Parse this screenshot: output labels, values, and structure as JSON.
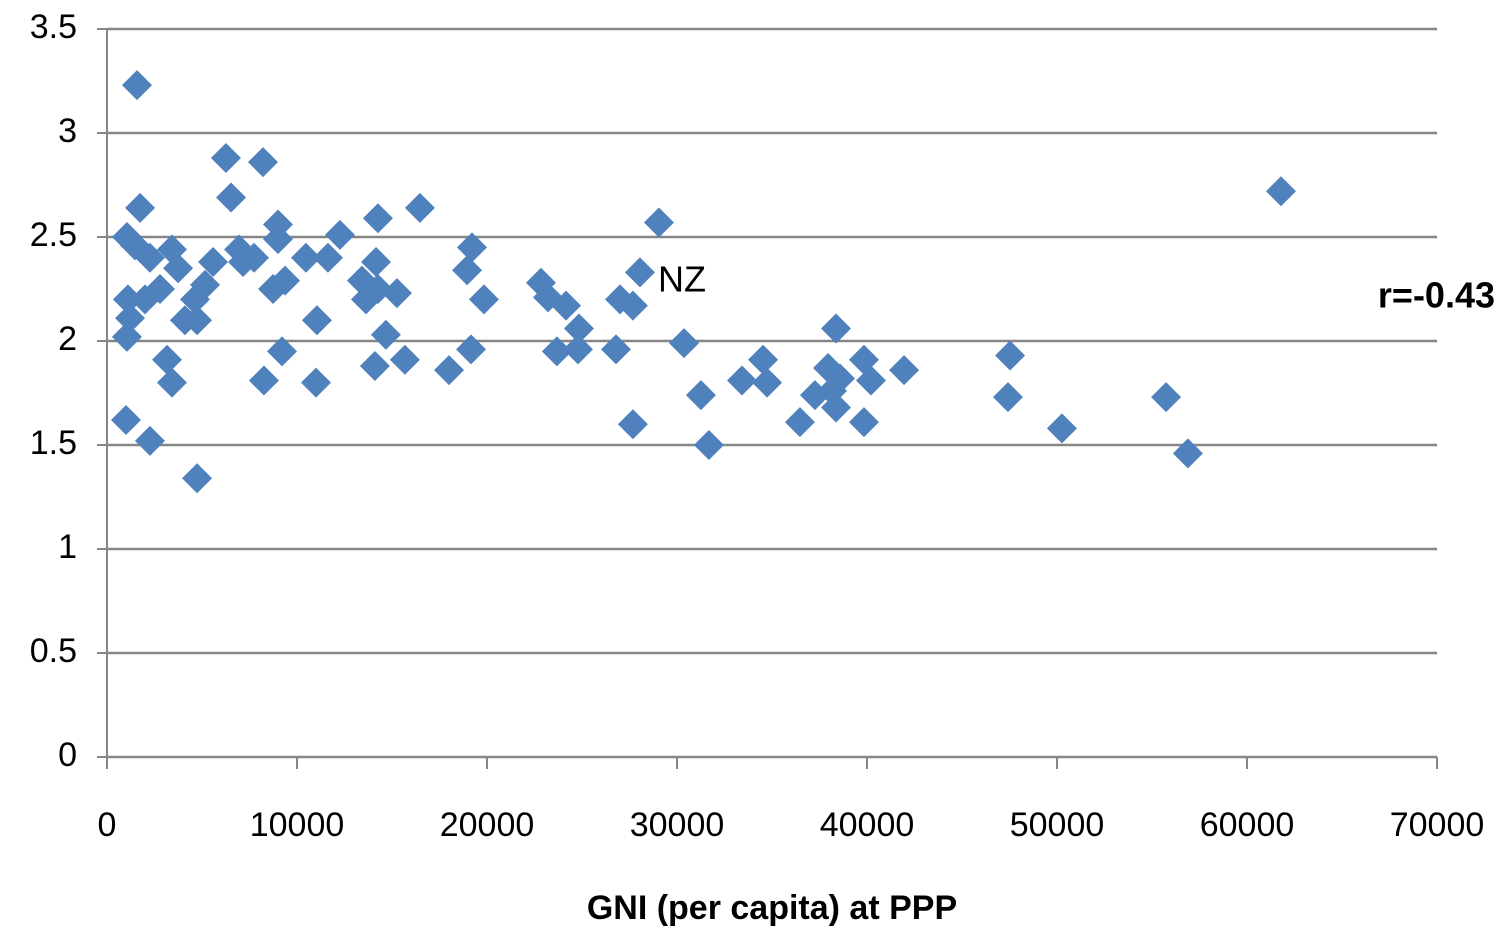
{
  "chart_data": {
    "type": "scatter",
    "x_label": "GNI (per capita) at PPP",
    "annotations": [
      "NZ",
      "r=-0.43"
    ],
    "color": "#4f81bd",
    "grid": true,
    "xlim": [
      0,
      70000
    ],
    "xticks": [
      0,
      10000,
      20000,
      30000,
      40000,
      50000,
      60000,
      70000
    ],
    "ylim": [
      0,
      3.5
    ],
    "yticks": [
      0,
      0.5,
      1,
      1.5,
      2,
      2.5,
      3,
      3.5
    ],
    "x": [
      1580,
      1740,
      1050,
      1470,
      1100,
      1210,
      1050,
      1000,
      2260,
      2000,
      2260,
      2790,
      3420,
      3740,
      3160,
      3420,
      4100,
      4630,
      4740,
      5160,
      4740,
      5580,
      6260,
      6530,
      7160,
      6950,
      7740,
      8210,
      8260,
      9000,
      9000,
      8740,
      9370,
      9210,
      10470,
      11050,
      11000,
      11630,
      12260,
      13420,
      13630,
      14160,
      14260,
      14100,
      14260,
      14680,
      15260,
      15680,
      16470,
      18000,
      18950,
      19210,
      19160,
      19840,
      22840,
      23210,
      23680,
      24160,
      24840,
      24790,
      26790,
      27000,
      27680,
      28050,
      27680,
      29050,
      30370,
      31260,
      31680,
      33420,
      34530,
      34740,
      36470,
      37260,
      37950,
      38160,
      38370,
      38580,
      38370,
      39840,
      39840,
      40210,
      41950,
      47530,
      47420,
      50260,
      55740,
      56890,
      61790
    ],
    "values": [
      3.23,
      2.64,
      2.5,
      2.46,
      2.2,
      2.11,
      2.02,
      1.62,
      1.52,
      2.2,
      2.4,
      2.25,
      2.44,
      2.35,
      1.91,
      1.8,
      2.1,
      2.2,
      2.1,
      2.27,
      1.34,
      2.38,
      2.88,
      2.69,
      2.38,
      2.44,
      2.4,
      2.86,
      1.81,
      2.56,
      2.49,
      2.25,
      2.29,
      1.95,
      2.4,
      2.1,
      1.8,
      2.4,
      2.51,
      2.29,
      2.2,
      2.38,
      2.59,
      1.88,
      2.25,
      2.03,
      2.23,
      1.91,
      2.64,
      1.86,
      2.34,
      2.45,
      1.96,
      2.2,
      2.28,
      2.21,
      1.95,
      2.17,
      2.06,
      1.96,
      1.96,
      2.2,
      2.17,
      2.33,
      1.6,
      2.57,
      1.99,
      1.74,
      1.5,
      1.81,
      1.91,
      1.8,
      1.61,
      1.74,
      1.87,
      1.76,
      2.06,
      1.82,
      1.68,
      1.91,
      1.61,
      1.81,
      1.86,
      1.93,
      1.73,
      1.58,
      1.73,
      1.46,
      2.72
    ]
  }
}
